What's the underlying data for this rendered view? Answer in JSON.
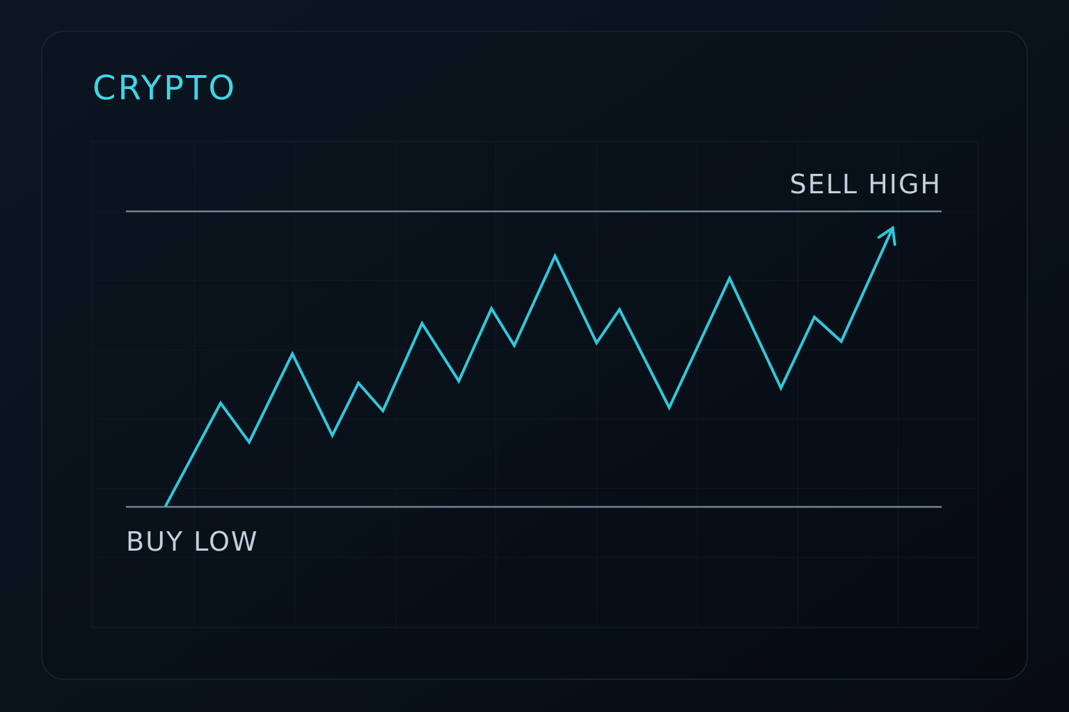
{
  "chart_data": {
    "type": "line",
    "title": "CRYPTO",
    "x": [
      4.9,
      11.6,
      15.1,
      20.4,
      25.3,
      28.5,
      31.5,
      36.3,
      40.8,
      44.8,
      47.6,
      52.6,
      57.7,
      60.5,
      66.6,
      74.0,
      80.3,
      84.4,
      87.7,
      94.0
    ],
    "values": [
      0.5,
      35.1,
      21.9,
      51.8,
      24.2,
      41.9,
      32.5,
      62.1,
      42.6,
      67.1,
      54.6,
      84.9,
      55.5,
      66.8,
      33.6,
      77.4,
      40.2,
      64.2,
      56.0,
      94.4
    ],
    "color": "#2fc9dd",
    "xlim": [
      0,
      100
    ],
    "ylim": [
      0,
      100
    ],
    "reference_lines": [
      {
        "label": "SELL HIGH",
        "value": 100
      },
      {
        "label": "BUY LOW",
        "value": 0
      }
    ]
  }
}
